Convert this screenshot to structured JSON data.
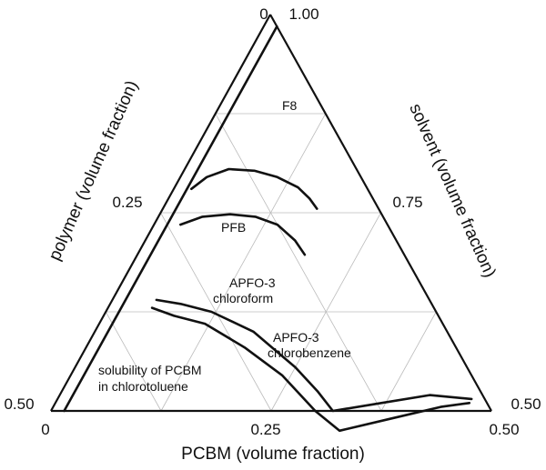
{
  "chart_data": {
    "type": "ternary",
    "axes": {
      "bottom": {
        "label": "PCBM (volume fraction)",
        "ticks": [
          "0",
          "0.25",
          "0.50"
        ]
      },
      "left": {
        "label": "polymer (volume fraction)",
        "ticks": [
          "0",
          "0.25",
          "0.50"
        ]
      },
      "right": {
        "label": "solvent (volume fraction)",
        "ticks": [
          "1.00",
          "0.75",
          "0.50"
        ]
      }
    },
    "grid": true,
    "series": [
      {
        "name": "F8",
        "points": [
          [
            0.02,
            0.2
          ],
          [
            0.03,
            0.175
          ],
          [
            0.05,
            0.145
          ],
          [
            0.08,
            0.117
          ],
          [
            0.11,
            0.095
          ],
          [
            0.14,
            0.078
          ],
          [
            0.16,
            0.072
          ],
          [
            0.175,
            0.07
          ]
        ]
      },
      {
        "name": "PFB",
        "points": [
          [
            0.03,
            0.235
          ],
          [
            0.05,
            0.205
          ],
          [
            0.08,
            0.172
          ],
          [
            0.11,
            0.145
          ],
          [
            0.14,
            0.125
          ],
          [
            0.17,
            0.115
          ],
          [
            0.19,
            0.113
          ]
        ]
      },
      {
        "name": "APFO-3 chloroform",
        "points": [
          [
            0.05,
            0.31
          ],
          [
            0.08,
            0.285
          ],
          [
            0.12,
            0.255
          ],
          [
            0.18,
            0.22
          ],
          [
            0.25,
            0.195
          ],
          [
            0.29,
            0.185
          ],
          [
            0.32,
            0.18
          ],
          [
            0.37,
            0.12
          ],
          [
            0.42,
            0.06
          ],
          [
            0.47,
            0.015
          ]
        ]
      },
      {
        "name": "APFO-3 chlorobenzene",
        "points": [
          [
            0.05,
            0.32
          ],
          [
            0.08,
            0.3
          ],
          [
            0.12,
            0.27
          ],
          [
            0.18,
            0.24
          ],
          [
            0.24,
            0.215
          ],
          [
            0.3,
            0.2
          ],
          [
            0.34,
            0.185
          ],
          [
            0.39,
            0.12
          ],
          [
            0.44,
            0.055
          ],
          [
            0.47,
            0.02
          ]
        ]
      },
      {
        "name": "solubility of PCBM in chlorotoluene",
        "points": [
          [
            0.015,
            0.0
          ],
          [
            0.015,
            0.485
          ]
        ]
      }
    ],
    "annotations": [
      {
        "text": "F8"
      },
      {
        "text": "PFB"
      },
      {
        "text": "APFO-3"
      },
      {
        "text": "chloroform"
      },
      {
        "text": "APFO-3"
      },
      {
        "text": "chlorobenzene"
      },
      {
        "text": "solubility of PCBM"
      },
      {
        "text": "in chlorotoluene"
      }
    ]
  }
}
